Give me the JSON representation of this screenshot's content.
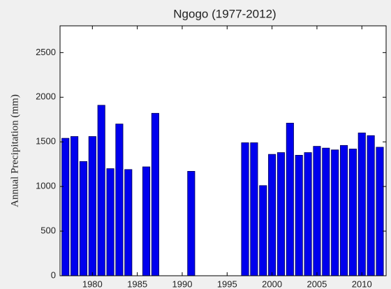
{
  "chart_data": {
    "type": "bar",
    "title": "Ngogo (1977-2012)",
    "ylabel": "Annual Precipitation (mm)",
    "x": [
      1977,
      1978,
      1979,
      1980,
      1981,
      1982,
      1983,
      1984,
      1985,
      1986,
      1987,
      1988,
      1989,
      1990,
      1991,
      1992,
      1993,
      1994,
      1995,
      1996,
      1997,
      1998,
      1999,
      2000,
      2001,
      2002,
      2003,
      2004,
      2005,
      2006,
      2007,
      2008,
      2009,
      2010,
      2011,
      2012
    ],
    "values": [
      1540,
      1560,
      1280,
      1560,
      1910,
      1200,
      1700,
      1190,
      null,
      1220,
      1820,
      null,
      null,
      null,
      1170,
      null,
      null,
      null,
      null,
      null,
      1490,
      1490,
      1010,
      1360,
      1380,
      1710,
      1350,
      1380,
      1450,
      1430,
      1410,
      1460,
      1420,
      1600,
      1570,
      1440
    ],
    "color": "#0000ee",
    "xlim": [
      1976.4,
      2012.7
    ],
    "xticks": [
      1980,
      1985,
      1990,
      1995,
      2000,
      2005,
      2010
    ],
    "ylim": [
      0,
      2800
    ],
    "yticks": [
      0,
      500,
      1000,
      1500,
      2000,
      2500
    ]
  }
}
